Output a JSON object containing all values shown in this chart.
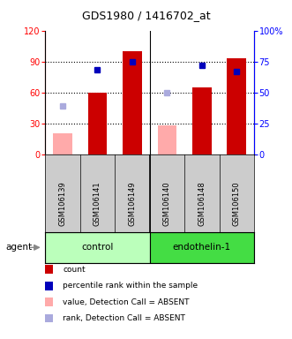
{
  "title": "GDS1980 / 1416702_at",
  "samples": [
    "GSM106139",
    "GSM106141",
    "GSM106149",
    "GSM106140",
    "GSM106148",
    "GSM106150"
  ],
  "groups": [
    {
      "label": "control",
      "indices": [
        0,
        1,
        2
      ],
      "color": "#bbffbb"
    },
    {
      "label": "endothelin-1",
      "indices": [
        3,
        4,
        5
      ],
      "color": "#44dd44"
    }
  ],
  "group_row_label": "agent",
  "count_values": [
    null,
    60,
    100,
    null,
    65,
    93
  ],
  "count_absent_values": [
    20,
    null,
    null,
    28,
    null,
    null
  ],
  "percentile_values": [
    null,
    68,
    75,
    null,
    72,
    67
  ],
  "percentile_absent_values": [
    39,
    null,
    null,
    50,
    null,
    null
  ],
  "left_ylim": [
    0,
    120
  ],
  "right_ylim": [
    0,
    100
  ],
  "left_yticks": [
    0,
    30,
    60,
    90,
    120
  ],
  "right_yticks": [
    0,
    25,
    50,
    75,
    100
  ],
  "right_yticklabels": [
    "0",
    "25",
    "50",
    "75",
    "100%"
  ],
  "bar_color": "#cc0000",
  "bar_absent_color": "#ffaaaa",
  "marker_color": "#0000bb",
  "marker_absent_color": "#aaaadd",
  "legend_items": [
    {
      "label": "count",
      "color": "#cc0000"
    },
    {
      "label": "percentile rank within the sample",
      "color": "#0000bb"
    },
    {
      "label": "value, Detection Call = ABSENT",
      "color": "#ffaaaa"
    },
    {
      "label": "rank, Detection Call = ABSENT",
      "color": "#aaaadd"
    }
  ]
}
